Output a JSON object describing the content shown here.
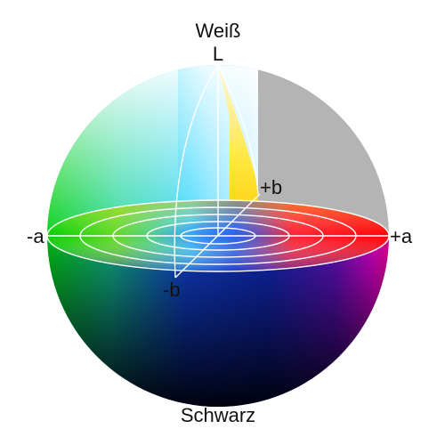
{
  "labels": {
    "top": "Weiß",
    "l_axis": "L",
    "plus_b": "+b",
    "minus_a": "-a",
    "plus_a": "+a",
    "minus_b": "-b",
    "bottom": "Schwarz"
  },
  "colors": {
    "white": "#ffffff",
    "black": "#000000",
    "red": "#ff0000",
    "magenta": "#d000c0",
    "blue": "#1030c0",
    "cyan": "#40d8ff",
    "green": "#00d000",
    "yellow": "#ffe000",
    "cutaway_gray": "#b4b4b4",
    "grid_line": "#ffffff"
  }
}
